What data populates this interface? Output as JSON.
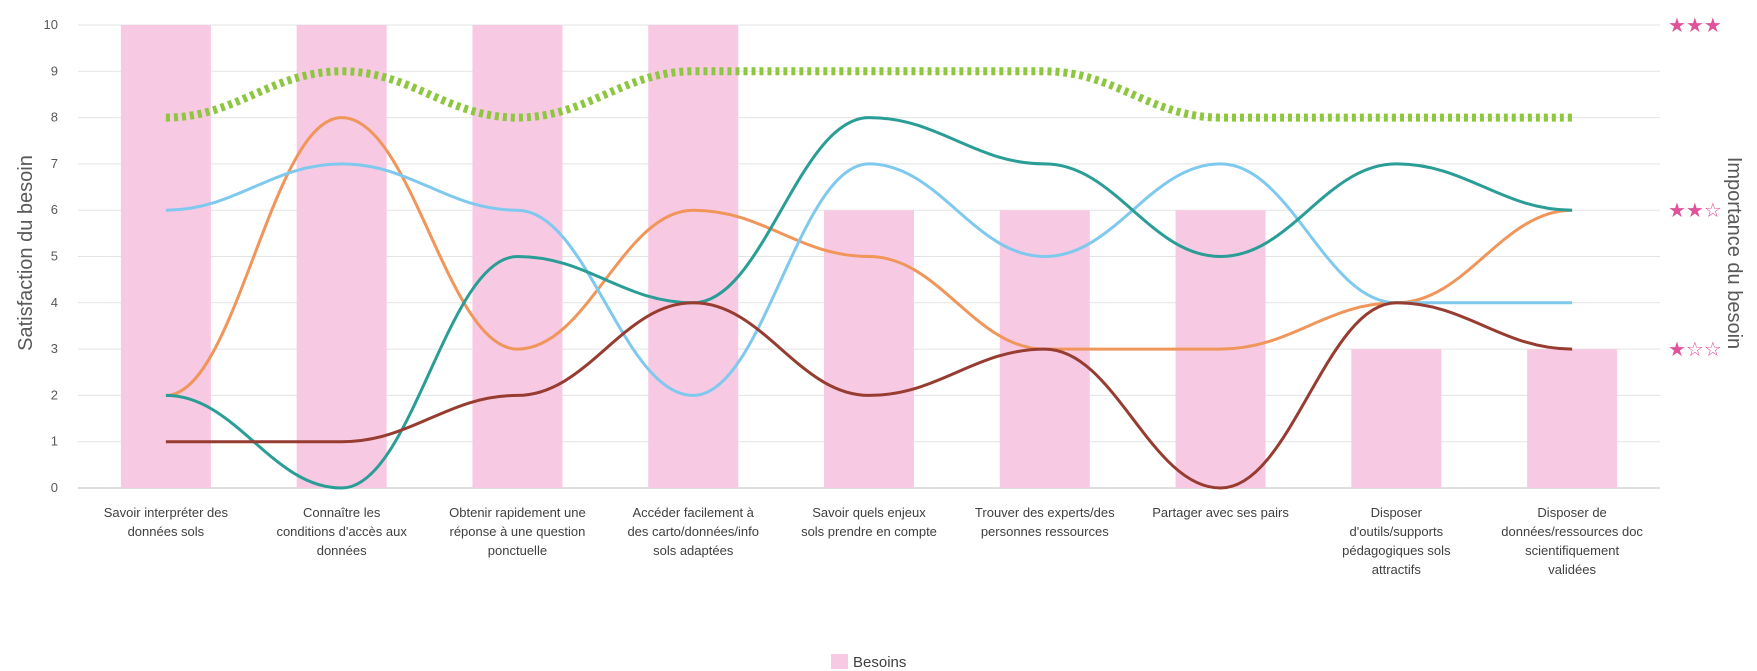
{
  "chart_data": {
    "type": "bar",
    "categories": [
      [
        "Savoir interpréter des",
        "données sols"
      ],
      [
        "Connaître les",
        "conditions d'accès aux",
        "données"
      ],
      [
        "Obtenir rapidement une",
        "réponse à une question",
        "ponctuelle"
      ],
      [
        "Accéder facilement à",
        "des carto/données/info",
        "sols adaptées"
      ],
      [
        "Savoir quels enjeux",
        "sols prendre en compte"
      ],
      [
        "Trouver des experts/des",
        "personnes ressources"
      ],
      [
        "Partager avec ses pairs"
      ],
      [
        "Disposer",
        "d'outils/supports",
        "pédagogiques sols",
        "attractifs"
      ],
      [
        "Disposer de",
        "données/ressources doc",
        "scientifiquement",
        "validées"
      ]
    ],
    "ylabel": "Satisfaction du besoin",
    "y2label": "Importance du besoin",
    "ylim": [
      0,
      10
    ],
    "yticks": [
      "0",
      "1",
      "2",
      "3",
      "4",
      "5",
      "6",
      "7",
      "8",
      "9",
      "10"
    ],
    "grid": true,
    "legend_position": "bottom",
    "legend": [
      "Besoins"
    ],
    "importance_markers": [
      {
        "value": 10,
        "label": "★★★"
      },
      {
        "value": 6,
        "label": "★★☆"
      },
      {
        "value": 3,
        "label": "★☆☆"
      }
    ],
    "bars": {
      "name": "Besoins",
      "color": "#f8c9e3",
      "values": [
        10,
        10,
        10,
        10,
        6,
        6,
        6,
        3,
        3
      ]
    },
    "series": [
      {
        "color": "#8dc63f",
        "style": "dotted",
        "values": [
          8,
          9,
          8,
          9,
          9,
          9,
          8,
          8,
          8
        ]
      },
      {
        "color": "#f0965b",
        "style": "solid",
        "values": [
          2,
          8,
          3,
          6,
          5,
          3,
          3,
          4,
          6
        ]
      },
      {
        "color": "#7fc9ee",
        "style": "solid",
        "values": [
          6,
          7,
          6,
          2,
          7,
          5,
          7,
          4,
          4
        ]
      },
      {
        "color": "#2a9d96",
        "style": "solid",
        "values": [
          2,
          0,
          5,
          4,
          8,
          7,
          5,
          7,
          6
        ]
      },
      {
        "color": "#963c30",
        "style": "solid",
        "values": [
          1,
          1,
          2,
          4,
          2,
          3,
          0,
          4,
          3
        ]
      }
    ]
  }
}
